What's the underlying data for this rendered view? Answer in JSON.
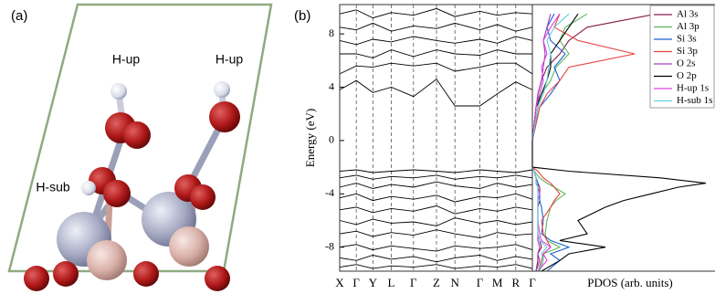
{
  "structure": {
    "panel_label": "(a)",
    "atom_labels": [
      "H-up",
      "H-up",
      "H-sub"
    ]
  },
  "chart_data": [
    {
      "type": "line",
      "panel_label": "(b)",
      "ylabel": "Energy (eV)",
      "x": [
        0,
        0.18,
        0.36,
        0.56,
        0.8,
        1.05,
        1.25,
        1.52,
        1.71,
        1.91,
        2.09
      ],
      "xlim": [
        0,
        2.09
      ],
      "xticks": [
        {
          "value": 0,
          "label": "X"
        },
        {
          "value": 0.18,
          "label": "Γ"
        },
        {
          "value": 0.36,
          "label": "Y"
        },
        {
          "value": 0.56,
          "label": "L"
        },
        {
          "value": 0.8,
          "label": "Γ"
        },
        {
          "value": 1.05,
          "label": "Z"
        },
        {
          "value": 1.25,
          "label": "N"
        },
        {
          "value": 1.52,
          "label": "Γ"
        },
        {
          "value": 1.71,
          "label": "M"
        },
        {
          "value": 1.91,
          "label": "R"
        },
        {
          "value": 2.09,
          "label": "Γ"
        }
      ],
      "ylim": [
        -9.8,
        10.2
      ],
      "yticks": [
        -8,
        -4,
        0,
        4,
        8
      ],
      "series": [
        {
          "color": "#000000",
          "values": [
            3.8,
            4.5,
            3.6,
            4,
            3.3,
            4.6,
            2.6,
            2.6,
            3.5,
            4.4,
            3.8
          ]
        },
        {
          "color": "#000000",
          "values": [
            5,
            5.6,
            5.5,
            5.8,
            5.6,
            5.8,
            5.2,
            5.5,
            5.8,
            5.8,
            5
          ]
        },
        {
          "color": "#000000",
          "values": [
            6.5,
            6.5,
            6.2,
            6.8,
            6.3,
            6.8,
            6.5,
            6.4,
            6.8,
            6.5,
            6.5
          ]
        },
        {
          "color": "#000000",
          "values": [
            7.5,
            7.2,
            7.6,
            7.4,
            7.8,
            7.5,
            7.3,
            7.6,
            7.3,
            7.8,
            7.5
          ]
        },
        {
          "color": "#000000",
          "values": [
            8.5,
            8.3,
            8.8,
            8.2,
            8.6,
            8.4,
            8.8,
            8.3,
            8.7,
            8.2,
            8.5
          ]
        },
        {
          "color": "#000000",
          "values": [
            9.5,
            9.8,
            9.2,
            9.6,
            9.4,
            9.9,
            9.3,
            9.7,
            9.4,
            9.6,
            9.5
          ]
        },
        {
          "color": "#000000",
          "values": [
            -2.3,
            -2.2,
            -2.4,
            -2.3,
            -2.2,
            -2.3,
            -2.4,
            -2.2,
            -2.3,
            -2.4,
            -2.2
          ]
        },
        {
          "color": "#000000",
          "values": [
            -2.8,
            -2.6,
            -2.9,
            -2.7,
            -2.8,
            -2.6,
            -2.9,
            -2.7,
            -2.8,
            -2.6,
            -2.8
          ]
        },
        {
          "color": "#000000",
          "values": [
            -3.5,
            -3.2,
            -3.6,
            -3.3,
            -3.5,
            -3.1,
            -3.4,
            -3.6,
            -3.2,
            -3.5,
            -3.3
          ]
        },
        {
          "color": "#000000",
          "values": [
            -4.3,
            -4.0,
            -4.5,
            -4.2,
            -4.4,
            -4.1,
            -4.6,
            -4.2,
            -4.3,
            -4.0,
            -4.4
          ]
        },
        {
          "color": "#000000",
          "values": [
            -5.2,
            -5.0,
            -5.4,
            -5.1,
            -5.3,
            -4.9,
            -5.5,
            -5.1,
            -5.3,
            -5.0,
            -5.2
          ]
        },
        {
          "color": "#000000",
          "values": [
            -6.0,
            -6.3,
            -5.9,
            -6.2,
            -6.1,
            -6.4,
            -5.8,
            -6.2,
            -6.0,
            -6.3,
            -6.1
          ]
        },
        {
          "color": "#000000",
          "values": [
            -7.0,
            -6.8,
            -7.2,
            -6.9,
            -7.1,
            -6.7,
            -7.0,
            -7.3,
            -6.9,
            -7.1,
            -7.0
          ]
        },
        {
          "color": "#000000",
          "values": [
            -8.0,
            -7.8,
            -8.2,
            -7.9,
            -8.1,
            -8.3,
            -7.9,
            -8.1,
            -8.0,
            -7.8,
            -8.2
          ]
        },
        {
          "color": "#000000",
          "values": [
            -8.8,
            -9.0,
            -8.6,
            -8.9,
            -8.7,
            -9.1,
            -8.8,
            -8.6,
            -9.0,
            -8.7,
            -8.9
          ]
        },
        {
          "color": "#000000",
          "values": [
            -9.5,
            -9.3,
            -9.6,
            -9.4,
            -9.5,
            -9.3,
            -9.6,
            -9.4,
            -9.5,
            -9.3,
            -9.6
          ]
        }
      ]
    },
    {
      "type": "pdos",
      "xlabel": "PDOS (arb. units)",
      "xlim": [
        0,
        10
      ],
      "ylim": [
        -9.8,
        10.2
      ],
      "y": [
        -9.8,
        -9,
        -8.5,
        -8,
        -7.5,
        -7,
        -6,
        -5,
        -4.5,
        -4,
        -3.5,
        -3.2,
        -2.8,
        -2.3,
        -2,
        0,
        2.5,
        3.5,
        4.5,
        5.5,
        6.5,
        7.5,
        8.5,
        9.5
      ],
      "series": [
        {
          "name": "Al 3s",
          "color": "#8b1a4a",
          "values": [
            0.2,
            0.3,
            0.3,
            0.5,
            0.4,
            0.3,
            0.3,
            0.3,
            0.4,
            0.4,
            0.4,
            0.3,
            0.2,
            0.1,
            0,
            0,
            0.3,
            0.3,
            0.5,
            0.8,
            1.5,
            2,
            3,
            6.8
          ]
        },
        {
          "name": "Al 3p",
          "color": "#5cb85c",
          "values": [
            0.4,
            0.6,
            0.6,
            1.5,
            0.8,
            0.7,
            0.8,
            1,
            1.3,
            1.8,
            1.2,
            0.8,
            0.4,
            0.1,
            0,
            0,
            0.3,
            0.5,
            1,
            1.3,
            2,
            1.5,
            1.8,
            3
          ]
        },
        {
          "name": "Si 3s",
          "color": "#1f5fd6",
          "values": [
            0.8,
            1.5,
            1,
            2,
            1,
            0.5,
            0.6,
            0.5,
            0.4,
            0.4,
            0.3,
            0.3,
            0.2,
            0.1,
            0,
            0,
            0.4,
            1,
            1.5,
            1.2,
            1.8,
            1,
            0.8,
            1.2
          ]
        },
        {
          "name": "Si 3p",
          "color": "#e8413c",
          "values": [
            0.3,
            0.5,
            0.6,
            1,
            0.8,
            0.6,
            0.5,
            1,
            1.2,
            1.5,
            1.2,
            1,
            0.6,
            0.3,
            0,
            0,
            0.4,
            0.8,
            1.5,
            2,
            5.6,
            2.5,
            1.2,
            1.5
          ]
        },
        {
          "name": "O 2s",
          "color": "#a040c0",
          "values": [
            0.2,
            0.4,
            0.3,
            0.4,
            0.3,
            0.3,
            0.3,
            0.3,
            0.3,
            0.3,
            0.3,
            0.2,
            0.2,
            0.1,
            0,
            0,
            0.2,
            0.3,
            0.5,
            0.6,
            0.7,
            0.6,
            0.8,
            1
          ]
        },
        {
          "name": "O 2p",
          "color": "#000000",
          "values": [
            0.5,
            1.5,
            2,
            4,
            1.5,
            3,
            2.5,
            4,
            5,
            6.5,
            8,
            9.5,
            7,
            2,
            0,
            0,
            0.2,
            0.5,
            0.8,
            1,
            1,
            1.5,
            2,
            2.5
          ]
        },
        {
          "name": "H-up 1s",
          "color": "#e040e0",
          "values": [
            0.3,
            0.8,
            0.6,
            1,
            0.5,
            0.4,
            0.3,
            0.3,
            0.3,
            0.4,
            0.3,
            0.2,
            0.2,
            0.1,
            0,
            0,
            0.2,
            0.4,
            0.6,
            0.5,
            0.8,
            0.6,
            1,
            1.5
          ]
        },
        {
          "name": "H-sub 1s",
          "color": "#60d0e0",
          "values": [
            0.3,
            0.6,
            0.5,
            0.8,
            0.4,
            0.3,
            0.3,
            0.3,
            0.3,
            0.3,
            0.3,
            0.2,
            0.2,
            0.1,
            0,
            0,
            0.3,
            0.6,
            0.8,
            0.9,
            1,
            0.8,
            1.2,
            2
          ]
        }
      ]
    }
  ]
}
